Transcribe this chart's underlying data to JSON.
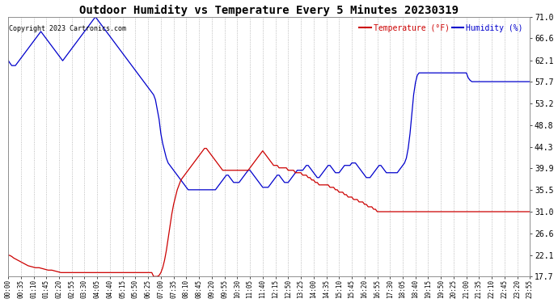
{
  "title": "Outdoor Humidity vs Temperature Every 5 Minutes 20230319",
  "copyright": "Copyright 2023 Cartronics.com",
  "legend_temp": "Temperature (°F)",
  "legend_hum": "Humidity (%)",
  "ylabel_right_ticks": [
    17.7,
    22.1,
    26.6,
    31.0,
    35.5,
    39.9,
    44.3,
    48.8,
    53.2,
    57.7,
    62.1,
    66.6,
    71.0
  ],
  "ylim": [
    17.7,
    71.0
  ],
  "bg_color": "#ffffff",
  "plot_bg_color": "#ffffff",
  "title_color": "#000000",
  "grid_color": "#aaaaaa",
  "temp_color": "#cc0000",
  "hum_color": "#0000cc",
  "figsize": [
    6.9,
    3.75
  ],
  "dpi": 100,
  "humidity_data": [
    62.1,
    61.5,
    61.0,
    61.0,
    61.0,
    61.5,
    62.0,
    62.5,
    63.0,
    63.5,
    64.0,
    64.5,
    65.0,
    65.5,
    66.0,
    66.5,
    67.0,
    67.5,
    68.0,
    67.5,
    67.0,
    66.5,
    66.0,
    65.5,
    65.0,
    64.5,
    64.0,
    63.5,
    63.0,
    62.5,
    62.0,
    62.5,
    63.0,
    63.5,
    64.0,
    64.5,
    65.0,
    65.5,
    66.0,
    66.5,
    67.0,
    67.5,
    68.0,
    68.5,
    69.0,
    69.5,
    70.0,
    70.5,
    71.0,
    70.5,
    70.0,
    69.5,
    69.0,
    68.5,
    68.0,
    67.5,
    67.0,
    66.5,
    66.0,
    65.5,
    65.0,
    64.5,
    64.0,
    63.5,
    63.0,
    62.5,
    62.0,
    61.5,
    61.0,
    60.5,
    60.0,
    59.5,
    59.0,
    58.5,
    58.0,
    57.5,
    57.0,
    56.5,
    56.0,
    55.5,
    55.0,
    54.0,
    52.0,
    50.0,
    47.0,
    45.0,
    43.5,
    42.0,
    41.0,
    40.5,
    40.0,
    39.5,
    39.0,
    38.5,
    38.0,
    37.5,
    37.0,
    36.5,
    36.0,
    35.5,
    35.5,
    35.5,
    35.5,
    35.5,
    35.5,
    35.5,
    35.5,
    35.5,
    35.5,
    35.5,
    35.5,
    35.5,
    35.5,
    35.5,
    35.5,
    36.0,
    36.5,
    37.0,
    37.5,
    38.0,
    38.5,
    38.5,
    38.0,
    37.5,
    37.0,
    37.0,
    37.0,
    37.0,
    37.5,
    38.0,
    38.5,
    39.0,
    39.5,
    39.5,
    39.0,
    38.5,
    38.0,
    37.5,
    37.0,
    36.5,
    36.0,
    36.0,
    36.0,
    36.0,
    36.5,
    37.0,
    37.5,
    38.0,
    38.5,
    38.5,
    38.0,
    37.5,
    37.0,
    37.0,
    37.0,
    37.5,
    38.0,
    38.5,
    39.0,
    39.5,
    39.5,
    39.5,
    39.5,
    40.0,
    40.5,
    40.5,
    40.0,
    39.5,
    39.0,
    38.5,
    38.0,
    38.0,
    38.5,
    39.0,
    39.5,
    40.0,
    40.5,
    40.5,
    40.0,
    39.5,
    39.0,
    39.0,
    39.0,
    39.5,
    40.0,
    40.5,
    40.5,
    40.5,
    40.5,
    41.0,
    41.0,
    41.0,
    40.5,
    40.0,
    39.5,
    39.0,
    38.5,
    38.0,
    38.0,
    38.0,
    38.5,
    39.0,
    39.5,
    40.0,
    40.5,
    40.5,
    40.0,
    39.5,
    39.0,
    39.0,
    39.0,
    39.0,
    39.0,
    39.0,
    39.0,
    39.5,
    40.0,
    40.5,
    41.0,
    42.0,
    44.0,
    47.0,
    51.0,
    55.0,
    57.5,
    59.0,
    59.5,
    59.5,
    59.5,
    59.5,
    59.5,
    59.5,
    59.5,
    59.5,
    59.5,
    59.5,
    59.5,
    59.5,
    59.5,
    59.5,
    59.5,
    59.5,
    59.5,
    59.5,
    59.5,
    59.5,
    59.5,
    59.5,
    59.5,
    59.5,
    59.5,
    59.5,
    59.5,
    58.5,
    58.0,
    57.7,
    57.7,
    57.7,
    57.7,
    57.7,
    57.7,
    57.7,
    57.7,
    57.7,
    57.7,
    57.7,
    57.7,
    57.7,
    57.7,
    57.7,
    57.7,
    57.7,
    57.7,
    57.7,
    57.7,
    57.7,
    57.7,
    57.7,
    57.7,
    57.7,
    57.7,
    57.7,
    57.7,
    57.7,
    57.7,
    57.7,
    57.7,
    57.7,
    57.7,
    57.7,
    57.7,
    57.7,
    57.7,
    57.7,
    57.7,
    57.7,
    57.7,
    57.7,
    57.7,
    57.7,
    57.7,
    57.7,
    57.7,
    57.7,
    57.7,
    57.7,
    57.7,
    57.7,
    57.7,
    57.7
  ],
  "temperature_data": [
    22.1,
    22.0,
    21.8,
    21.5,
    21.3,
    21.1,
    20.9,
    20.7,
    20.5,
    20.3,
    20.1,
    19.9,
    19.8,
    19.7,
    19.6,
    19.5,
    19.5,
    19.5,
    19.4,
    19.3,
    19.2,
    19.1,
    19.0,
    19.0,
    19.0,
    18.9,
    18.8,
    18.7,
    18.6,
    18.5,
    18.5,
    18.5,
    18.5,
    18.5,
    18.5,
    18.5,
    18.5,
    18.5,
    18.5,
    18.5,
    18.5,
    18.5,
    18.5,
    18.5,
    18.5,
    18.5,
    18.5,
    18.5,
    18.5,
    18.5,
    18.5,
    18.5,
    18.5,
    18.5,
    18.5,
    18.5,
    18.5,
    18.5,
    18.5,
    18.5,
    18.5,
    18.5,
    18.5,
    18.5,
    18.5,
    18.5,
    18.5,
    18.5,
    18.5,
    18.5,
    18.5,
    18.5,
    18.5,
    18.5,
    18.5,
    18.5,
    18.5,
    18.5,
    18.5,
    18.5,
    17.7,
    17.7,
    17.7,
    17.9,
    18.5,
    19.5,
    21.0,
    23.0,
    25.5,
    28.0,
    30.5,
    32.5,
    34.0,
    35.5,
    36.5,
    37.5,
    38.0,
    38.5,
    39.0,
    39.5,
    40.0,
    40.5,
    41.0,
    41.5,
    42.0,
    42.5,
    43.0,
    43.5,
    44.0,
    44.0,
    43.5,
    43.0,
    42.5,
    42.0,
    41.5,
    41.0,
    40.5,
    40.0,
    39.5,
    39.5,
    39.5,
    39.5,
    39.5,
    39.5,
    39.5,
    39.5,
    39.5,
    39.5,
    39.5,
    39.5,
    39.5,
    39.5,
    39.5,
    40.0,
    40.5,
    41.0,
    41.5,
    42.0,
    42.5,
    43.0,
    43.5,
    43.0,
    42.5,
    42.0,
    41.5,
    41.0,
    40.5,
    40.5,
    40.5,
    40.0,
    40.0,
    40.0,
    40.0,
    40.0,
    39.5,
    39.5,
    39.5,
    39.5,
    39.0,
    39.0,
    39.0,
    39.0,
    38.5,
    38.5,
    38.5,
    38.0,
    38.0,
    37.5,
    37.5,
    37.0,
    37.0,
    36.5,
    36.5,
    36.5,
    36.5,
    36.5,
    36.5,
    36.0,
    36.0,
    36.0,
    35.5,
    35.5,
    35.0,
    35.0,
    35.0,
    34.5,
    34.5,
    34.0,
    34.0,
    34.0,
    33.5,
    33.5,
    33.5,
    33.0,
    33.0,
    33.0,
    32.5,
    32.5,
    32.0,
    32.0,
    32.0,
    31.5,
    31.5,
    31.0,
    31.0,
    31.0,
    31.0,
    31.0,
    31.0,
    31.0,
    31.0,
    31.0,
    31.0,
    31.0,
    31.0,
    31.0,
    31.0,
    31.0,
    31.0,
    31.0,
    31.0,
    31.0,
    31.0,
    31.0,
    31.0,
    31.0,
    31.0,
    31.0,
    31.0,
    31.0,
    31.0,
    31.0,
    31.0,
    31.0,
    31.0,
    31.0,
    31.0,
    31.0,
    31.0,
    31.0,
    31.0,
    31.0,
    31.0,
    31.0,
    31.0,
    31.0,
    31.0,
    31.0,
    31.0,
    31.0,
    31.0,
    31.0,
    31.0,
    31.0,
    31.0,
    31.0,
    31.0,
    31.0,
    31.0,
    31.0,
    31.0,
    31.0,
    31.0,
    31.0,
    31.0,
    31.0,
    31.0,
    31.0,
    31.0,
    31.0,
    31.0,
    31.0,
    31.0,
    31.0,
    31.0,
    31.0,
    31.0,
    31.0,
    31.0,
    31.0,
    31.0,
    31.0,
    31.0,
    31.0,
    31.0,
    31.0,
    31.0,
    31.0,
    31.0,
    31.0,
    31.0,
    31.0,
    31.0
  ]
}
